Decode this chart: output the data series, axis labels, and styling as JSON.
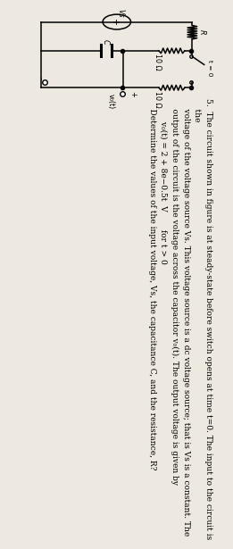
{
  "bg_color": "#ede8e0",
  "circuit": {
    "vs_label": "Vs",
    "r_label": "R",
    "r1_label": "10 Ω",
    "r2_label": "10 Ω",
    "c_label": "C",
    "switch_label": "t = 0",
    "vo_label": "v₀(t)",
    "vo_plus": "+"
  },
  "problem_lines": [
    "5.  The circuit shown in figure is at steady-state before switch opens at time t=0. The input to the circuit is",
    "    the",
    "    voltage of the voltage source Vs. This voltage source is a dc voltage source; that is Vs is a constant. The",
    "    output of the circuit is the voltage across the capacitor v₀(t). The output voltage is given by",
    "         v₀(t) = 2 + 8e−0.5t  V       for t > 0",
    "    Determine the values of the input voltage, Vs, the capacitance C, and the resistance, R?"
  ],
  "text_fontsize": 6.5,
  "label_fontsize": 5.8,
  "lw": 1.1
}
